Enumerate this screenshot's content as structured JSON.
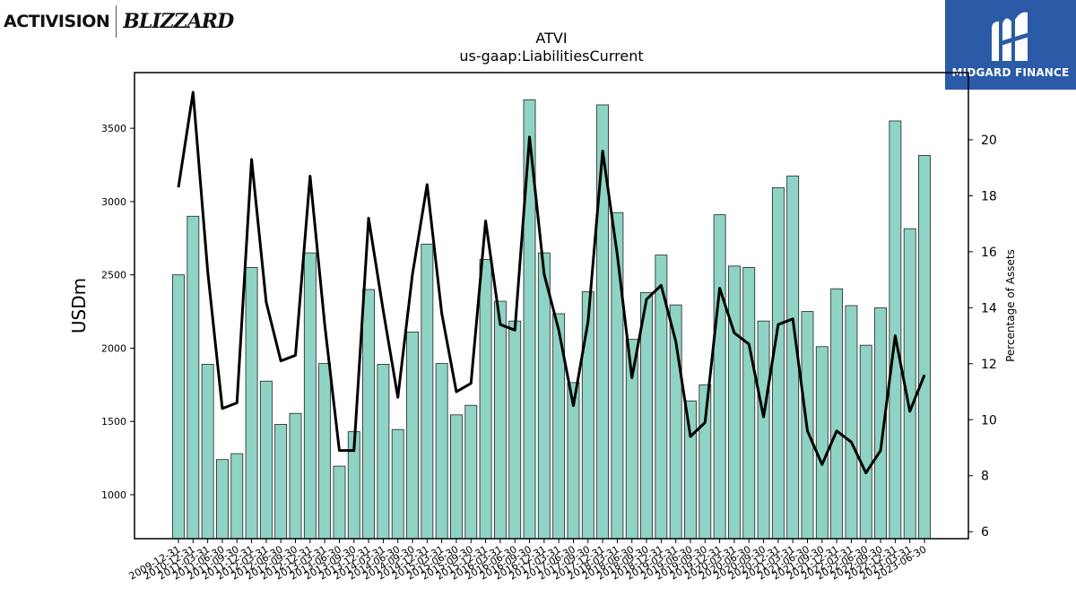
{
  "logos": {
    "left_brand": "ACTIVISION",
    "left_brand2": "BLIZZARD",
    "right_brand": "MIDGARD FINANCE"
  },
  "chart_data": {
    "type": "bar",
    "title": "ATVI",
    "subtitle": "us-gaap:LiabilitiesCurrent",
    "ylabel": "USDm",
    "y2label": "Percentage of Assets",
    "ylim": [
      700,
      3880
    ],
    "y2lim": [
      5.75,
      22.4
    ],
    "yticks": [
      1000,
      1500,
      2000,
      2500,
      3000,
      3500
    ],
    "y2ticks": [
      6,
      8,
      10,
      12,
      14,
      16,
      18,
      20
    ],
    "colors": {
      "bar": "#8ed3c4",
      "bar_edge": "#222222",
      "line": "#000000"
    },
    "grid": false,
    "categories": [
      "2009-12-31",
      "2010-12-31",
      "2011-03-31",
      "2011-06-30",
      "2011-09-30",
      "2011-12-31",
      "2012-03-31",
      "2012-06-30",
      "2012-09-30",
      "2012-12-31",
      "2013-03-31",
      "2013-06-30",
      "2013-09-30",
      "2013-12-31",
      "2014-03-31",
      "2014-06-30",
      "2014-09-30",
      "2014-12-31",
      "2015-03-31",
      "2015-06-30",
      "2015-09-30",
      "2015-12-31",
      "2016-03-31",
      "2016-06-30",
      "2016-09-30",
      "2016-12-31",
      "2017-03-31",
      "2017-06-30",
      "2017-09-30",
      "2017-12-31",
      "2018-03-31",
      "2018-06-30",
      "2018-09-30",
      "2018-12-31",
      "2019-03-31",
      "2019-06-30",
      "2019-09-30",
      "2019-12-31",
      "2020-03-31",
      "2020-06-30",
      "2020-09-30",
      "2020-12-31",
      "2021-03-31",
      "2021-06-30",
      "2021-09-30",
      "2021-12-31",
      "2022-03-31",
      "2022-06-30",
      "2022-09-30",
      "2022-12-31",
      "2023-03-31",
      "2023-06-30"
    ],
    "series": [
      {
        "axis": "left",
        "kind": "bar",
        "values": [
          2500,
          2900,
          1890,
          1240,
          1280,
          2550,
          1775,
          1480,
          1555,
          2650,
          1895,
          1195,
          1430,
          2400,
          1890,
          1445,
          2110,
          2710,
          1895,
          1545,
          1610,
          2605,
          2320,
          2185,
          3695,
          2650,
          2235,
          1765,
          2385,
          3660,
          2925,
          2060,
          2380,
          2635,
          2295,
          1640,
          1750,
          2910,
          2560,
          2550,
          2185,
          3095,
          3175,
          2250,
          2010,
          2405,
          2290,
          2020,
          2275,
          3550,
          2815,
          3315
        ]
      },
      {
        "axis": "right",
        "kind": "line",
        "values": [
          18.3,
          21.7,
          15.3,
          10.4,
          10.6,
          19.3,
          14.2,
          12.1,
          12.3,
          18.7,
          13.4,
          8.9,
          8.9,
          17.2,
          13.9,
          10.8,
          15.2,
          18.4,
          13.8,
          11.0,
          11.3,
          17.1,
          13.4,
          13.2,
          20.1,
          15.2,
          13.2,
          10.5,
          13.5,
          19.6,
          15.9,
          11.5,
          14.3,
          14.8,
          12.8,
          9.4,
          9.9,
          14.7,
          13.1,
          12.7,
          10.1,
          13.4,
          13.6,
          9.6,
          8.4,
          9.6,
          9.2,
          8.1,
          8.9,
          13.0,
          10.3,
          11.6
        ]
      }
    ]
  }
}
